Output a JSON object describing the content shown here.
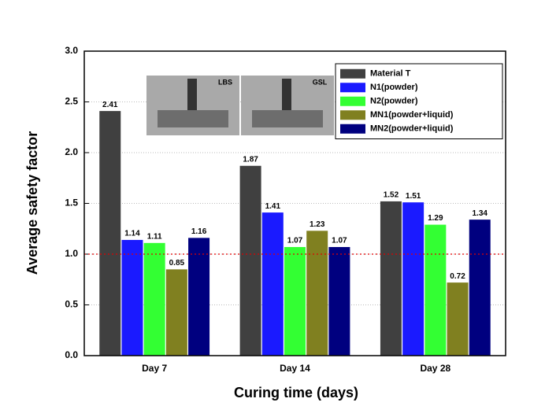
{
  "chart_data": {
    "type": "bar",
    "x_label": "Curing time (days)",
    "y_label": "Average safety factor",
    "categories": [
      "Day 7",
      "Day 14",
      "Day 28"
    ],
    "series": [
      {
        "name": "Material T",
        "color": "#404040",
        "values": [
          2.41,
          1.87,
          1.52
        ]
      },
      {
        "name": "N1(powder)",
        "color": "#1a1aff",
        "values": [
          1.14,
          1.41,
          1.51
        ]
      },
      {
        "name": "N2(powder)",
        "color": "#33ff33",
        "values": [
          1.11,
          1.07,
          1.29
        ]
      },
      {
        "name": "MN1(powder+liquid)",
        "color": "#808020",
        "values": [
          0.85,
          1.23,
          0.72
        ]
      },
      {
        "name": "MN2(powder+liquid)",
        "color": "#00007f",
        "values": [
          1.16,
          1.07,
          1.34
        ]
      }
    ],
    "ylim": [
      0,
      3
    ],
    "yticks": [
      {
        "value": 0,
        "label": "0.0"
      },
      {
        "value": 0.5,
        "label": "0.5"
      },
      {
        "value": 1,
        "label": "1.0"
      },
      {
        "value": 1.5,
        "label": "1.5"
      },
      {
        "value": 2,
        "label": "2.0"
      },
      {
        "value": 2.5,
        "label": "2.5"
      },
      {
        "value": 3,
        "label": "3.0"
      }
    ],
    "grid": true,
    "reference_line": {
      "value": 1,
      "color": "#e00000"
    },
    "legend": "upper right",
    "annotations": [
      "LBS",
      "GSL"
    ]
  }
}
